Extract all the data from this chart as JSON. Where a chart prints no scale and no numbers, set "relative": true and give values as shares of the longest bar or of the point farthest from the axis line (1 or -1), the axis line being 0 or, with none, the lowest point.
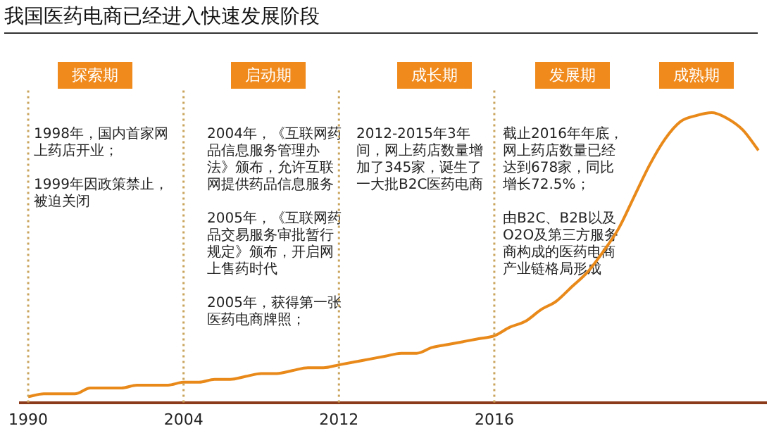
{
  "chart_data": {
    "type": "line",
    "title": "我国医药电商已经进入快速发展阶段",
    "relative": true,
    "legend": false,
    "grid": false,
    "marker": "none",
    "line_style": "solid",
    "categories": [
      "1990",
      null,
      null,
      null,
      null,
      null,
      null,
      null,
      null,
      null,
      "2004",
      null,
      null,
      null,
      null,
      null,
      null,
      null,
      null,
      null,
      "2012",
      null,
      null,
      null,
      null,
      null,
      null,
      null,
      null,
      null,
      "2016",
      null,
      null,
      null,
      null,
      null,
      null,
      null,
      null,
      null,
      null,
      null,
      null,
      null,
      null,
      null,
      null,
      null
    ],
    "series": [
      {
        "color": "#e8891a",
        "values": [
          0.02,
          0.03,
          0.03,
          0.03,
          0.05,
          0.05,
          0.05,
          0.06,
          0.06,
          0.06,
          0.07,
          0.07,
          0.08,
          0.08,
          0.09,
          0.1,
          0.1,
          0.11,
          0.12,
          0.12,
          0.13,
          0.14,
          0.15,
          0.16,
          0.17,
          0.17,
          0.19,
          0.2,
          0.21,
          0.22,
          0.23,
          0.26,
          0.28,
          0.32,
          0.35,
          0.4,
          0.45,
          0.52,
          0.6,
          0.71,
          0.82,
          0.91,
          0.97,
          0.99,
          1,
          0.98,
          0.94,
          0.87
        ]
      }
    ],
    "ref_lines": [
      {
        "axis": "x",
        "value": "1990",
        "color": "#c9a45c",
        "line_style": "dotted"
      },
      {
        "axis": "x",
        "value": "2004",
        "color": "#c9a45c",
        "line_style": "dotted"
      },
      {
        "axis": "x",
        "value": "2012",
        "color": "#c9a45c",
        "line_style": "dotted"
      },
      {
        "axis": "x",
        "value": "2016",
        "color": "#c9a45c",
        "line_style": "dotted"
      }
    ],
    "annotations": [
      "探索期",
      "1998年，国内首家网上药店开业；",
      "1999年因政策禁止，被迫关闭",
      "启动期",
      "2004年，《互联网药品信息服务管理办法》颁布，允许互联网提供药品信息服务",
      "2005年，《互联网药品交易服务审批暂行规定》颁布，开启网上售药时代",
      "2005年，获得第一张医药电商牌照；",
      "成长期",
      "2012-2015年3年间，网上药店数量增加了345家，诞生了一大批B2C医药电商",
      "发展期",
      "截止2016年年底，网上药店数量已经达到678家，同比增长72.5%；",
      "由B2C、B2B以及O2O及第三方服务商构成的医药电商产业链格局形成",
      "成熟期"
    ]
  }
}
